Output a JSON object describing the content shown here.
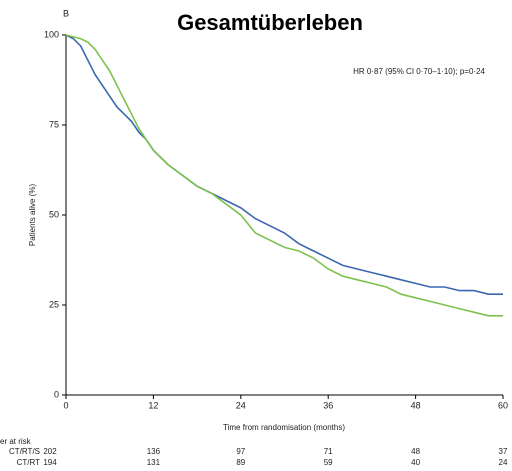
{
  "chart_data": {
    "type": "line",
    "panel": "B",
    "title": "Gesamtüberleben",
    "annotation": "HR 0·87 (95% CI 0·70–1·10); p=0·24",
    "xlabel": "Time from randomisation (months)",
    "ylabel": "Patients alive (%)",
    "xlim": [
      0,
      60
    ],
    "xticks": [
      0,
      12,
      24,
      36,
      48,
      60
    ],
    "ylim": [
      0,
      100
    ],
    "yticks": [
      0,
      25,
      50,
      75,
      100
    ],
    "series": [
      {
        "name": "CT/RT/S",
        "color": "#3a67b0",
        "x": [
          0,
          1,
          2,
          3,
          4,
          5,
          6,
          7,
          8,
          9,
          10,
          11,
          12,
          14,
          16,
          18,
          20,
          22,
          24,
          26,
          28,
          30,
          32,
          34,
          36,
          38,
          40,
          42,
          44,
          46,
          48,
          50,
          52,
          54,
          56,
          58,
          60
        ],
        "values": [
          100,
          99,
          97,
          93,
          89,
          86,
          83,
          80,
          78,
          76,
          73,
          71,
          68,
          64,
          61,
          58,
          56,
          54,
          52,
          49,
          47,
          45,
          42,
          40,
          38,
          36,
          35,
          34,
          33,
          32,
          31,
          30,
          30,
          29,
          29,
          28,
          28
        ]
      },
      {
        "name": "CT/RT",
        "color": "#7dc24e",
        "x": [
          0,
          2,
          3,
          4,
          5,
          6,
          7,
          8,
          9,
          10,
          11,
          12,
          14,
          16,
          18,
          20,
          22,
          24,
          26,
          28,
          30,
          32,
          34,
          36,
          38,
          40,
          42,
          44,
          46,
          48,
          50,
          52,
          54,
          56,
          58,
          60
        ],
        "values": [
          100,
          99,
          98,
          96,
          93,
          90,
          86,
          82,
          78,
          74,
          71,
          68,
          64,
          61,
          58,
          56,
          53,
          50,
          45,
          43,
          41,
          40,
          38,
          35,
          33,
          32,
          31,
          30,
          28,
          27,
          26,
          25,
          24,
          23,
          22,
          22
        ]
      }
    ],
    "risk_table": {
      "label": "er at risk",
      "rows": [
        {
          "name": "CT/RT/S",
          "values": [
            202,
            136,
            97,
            71,
            48,
            37
          ]
        },
        {
          "name": "CT/RT",
          "values": [
            194,
            131,
            89,
            59,
            40,
            24
          ]
        }
      ]
    }
  }
}
